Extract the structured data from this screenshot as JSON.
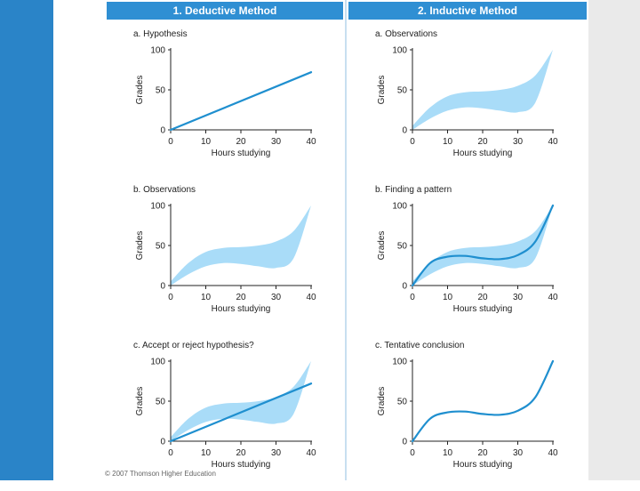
{
  "headers": {
    "deductive": "1. Deductive Method",
    "inductive": "2.   Inductive Method"
  },
  "copyright": "© 2007 Thomson Higher Education",
  "colors": {
    "accent_blue": "#2f8fd3",
    "line": "#1f8fcf",
    "band": "#a9dcf8",
    "axis": "#222222",
    "side_bar": "#2a84c8"
  },
  "chart_data": [
    {
      "id": "deductive-a",
      "type": "line",
      "title": "a. Hypothesis",
      "xlabel": "Hours studying",
      "ylabel": "Grades",
      "xticks": [
        0,
        10,
        20,
        30,
        40
      ],
      "yticks": [
        0,
        50,
        100
      ],
      "xlim": [
        0,
        40
      ],
      "ylim": [
        0,
        100
      ],
      "band": null,
      "series": [
        {
          "name": "hypothesis",
          "kind": "linear",
          "x": [
            0,
            40
          ],
          "y": [
            0,
            72
          ]
        }
      ]
    },
    {
      "id": "inductive-a",
      "type": "area",
      "title": "a. Observations",
      "xlabel": "Hours studying",
      "ylabel": "Grades",
      "xticks": [
        0,
        10,
        20,
        30,
        40
      ],
      "yticks": [
        0,
        50,
        100
      ],
      "xlim": [
        0,
        40
      ],
      "ylim": [
        0,
        100
      ],
      "band": {
        "x": [
          0,
          5,
          10,
          15,
          20,
          25,
          30,
          35,
          40
        ],
        "upper": [
          5,
          28,
          42,
          47,
          48,
          50,
          55,
          68,
          100
        ],
        "lower": [
          0,
          14,
          24,
          28,
          27,
          24,
          22,
          34,
          100
        ]
      },
      "series": []
    },
    {
      "id": "deductive-b",
      "type": "area",
      "title": "b. Observations",
      "xlabel": "Hours studying",
      "ylabel": "Grades",
      "xticks": [
        0,
        10,
        20,
        30,
        40
      ],
      "yticks": [
        0,
        50,
        100
      ],
      "xlim": [
        0,
        40
      ],
      "ylim": [
        0,
        100
      ],
      "band": {
        "x": [
          0,
          5,
          10,
          15,
          20,
          25,
          30,
          35,
          40
        ],
        "upper": [
          5,
          28,
          42,
          47,
          48,
          50,
          55,
          68,
          100
        ],
        "lower": [
          0,
          14,
          24,
          28,
          27,
          24,
          22,
          34,
          100
        ]
      },
      "series": []
    },
    {
      "id": "inductive-b",
      "type": "area",
      "title": "b. Finding a pattern",
      "xlabel": "Hours studying",
      "ylabel": "Grades",
      "xticks": [
        0,
        10,
        20,
        30,
        40
      ],
      "yticks": [
        0,
        50,
        100
      ],
      "xlim": [
        0,
        40
      ],
      "ylim": [
        0,
        100
      ],
      "band": {
        "x": [
          0,
          5,
          10,
          15,
          20,
          25,
          30,
          35,
          40
        ],
        "upper": [
          5,
          28,
          42,
          47,
          48,
          50,
          55,
          68,
          100
        ],
        "lower": [
          0,
          14,
          24,
          28,
          27,
          24,
          22,
          34,
          100
        ]
      },
      "series": [
        {
          "name": "pattern",
          "kind": "curve",
          "x": [
            0,
            5,
            10,
            15,
            20,
            25,
            30,
            35,
            40
          ],
          "y": [
            0,
            28,
            36,
            37,
            34,
            33,
            38,
            55,
            100
          ]
        }
      ]
    },
    {
      "id": "deductive-c",
      "type": "area",
      "title": "c. Accept or reject hypothesis?",
      "xlabel": "Hours studying",
      "ylabel": "Grades",
      "xticks": [
        0,
        10,
        20,
        30,
        40
      ],
      "yticks": [
        0,
        50,
        100
      ],
      "xlim": [
        0,
        40
      ],
      "ylim": [
        0,
        100
      ],
      "band": {
        "x": [
          0,
          5,
          10,
          15,
          20,
          25,
          30,
          35,
          40
        ],
        "upper": [
          5,
          28,
          42,
          47,
          48,
          50,
          55,
          68,
          100
        ],
        "lower": [
          0,
          14,
          24,
          28,
          27,
          24,
          22,
          34,
          100
        ]
      },
      "series": [
        {
          "name": "hypothesis",
          "kind": "linear",
          "x": [
            0,
            40
          ],
          "y": [
            0,
            72
          ]
        }
      ]
    },
    {
      "id": "inductive-c",
      "type": "line",
      "title": "c. Tentative conclusion",
      "xlabel": "Hours studying",
      "ylabel": "Grades",
      "xticks": [
        0,
        10,
        20,
        30,
        40
      ],
      "yticks": [
        0,
        50,
        100
      ],
      "xlim": [
        0,
        40
      ],
      "ylim": [
        0,
        100
      ],
      "band": null,
      "series": [
        {
          "name": "conclusion",
          "kind": "curve",
          "x": [
            0,
            5,
            10,
            15,
            20,
            25,
            30,
            35,
            40
          ],
          "y": [
            0,
            28,
            36,
            37,
            34,
            33,
            38,
            55,
            100
          ]
        }
      ]
    }
  ]
}
